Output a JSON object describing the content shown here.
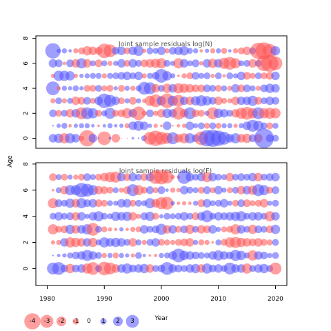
{
  "colors": {
    "negative": "#ff5050",
    "positive": "#5050ff",
    "frame": "#000000",
    "title": "#555555"
  },
  "chart_data": [
    {
      "type": "scatter",
      "subtype": "bubble",
      "title": "Joint sample residuals log(N)",
      "ylabel": "Age",
      "xlim": [
        1978,
        2022
      ],
      "ylim": [
        -0.8,
        8.2
      ],
      "xticks": [
        "1980",
        "1990",
        "2000",
        "2010",
        "2020"
      ],
      "yticks": [
        "0",
        "2",
        "4",
        "6",
        "8"
      ],
      "years": [
        1981,
        1982,
        1983,
        1984,
        1985,
        1986,
        1987,
        1988,
        1989,
        1990,
        1991,
        1992,
        1993,
        1994,
        1995,
        1996,
        1997,
        1998,
        1999,
        2000,
        2001,
        2002,
        2003,
        2004,
        2005,
        2006,
        2007,
        2008,
        2009,
        2010,
        2011,
        2012,
        2013,
        2014,
        2015,
        2016,
        2017,
        2018,
        2019,
        2020
      ],
      "ages": [
        0,
        1,
        2,
        3,
        4,
        5,
        6,
        7
      ],
      "residuals": [
        [
          1.0,
          1.1,
          -1.2,
          1.2,
          1.0,
          -0.6,
          -1.9,
          1.0,
          0.2,
          -1.6,
          0.3,
          -1.0,
          -0.1,
          -0.1,
          0.3,
          0.2,
          0.7,
          -1.5,
          -1.8,
          -1.5,
          -1.3,
          1.4,
          -1.0,
          -1.2,
          1.2,
          0.9,
          -1.6,
          1.9,
          2.0,
          1.8,
          1.5,
          1.0,
          1.2,
          -1.0,
          -1.1,
          0.9,
          -1.0,
          2.3,
          0.9,
          0.8
        ],
        [
          0.2,
          0.5,
          0.7,
          -0.4,
          0.5,
          0.6,
          0.6,
          0.4,
          -0.3,
          0.4,
          0.6,
          0.4,
          0.5,
          -0.6,
          1.0,
          1.2,
          1.0,
          0.5,
          -0.5,
          -0.3,
          1.0,
          -0.2,
          -0.4,
          -0.5,
          1.0,
          0.6,
          0.8,
          -0.7,
          0.8,
          -0.7,
          0.6,
          0.6,
          -0.5,
          0.6,
          1.0,
          1.4,
          1.2,
          0.8,
          -0.8,
          0.7
        ],
        [
          0.9,
          -0.8,
          0.8,
          -1.0,
          1.0,
          -1.4,
          1.4,
          1.2,
          -0.8,
          0.7,
          1.3,
          -0.8,
          -0.9,
          -1.2,
          1.0,
          -1.6,
          -0.6,
          0.9,
          -0.6,
          -1.0,
          1.1,
          1.0,
          -1.5,
          -1.0,
          1.4,
          -0.9,
          -0.8,
          0.6,
          -1.4,
          1.1,
          1.0,
          0.8,
          -1.0,
          -1.3,
          -1.5,
          -1.2,
          1.4,
          -1.2,
          -1.3,
          -1.2
        ],
        [
          -0.6,
          0.8,
          -0.6,
          0.7,
          -1.0,
          -0.9,
          0.9,
          -0.7,
          1.0,
          1.7,
          1.4,
          1.0,
          -0.8,
          0.6,
          -0.9,
          0.6,
          -0.5,
          -1.2,
          -1.5,
          1.1,
          -1.7,
          1.2,
          -1.4,
          1.0,
          -1.0,
          1.1,
          1.3,
          1.1,
          0.9,
          -1.0,
          -0.7,
          -0.6,
          -1.0,
          1.0,
          1.0,
          1.2,
          -0.9,
          0.8,
          1.0,
          0.9
        ],
        [
          1.6,
          -0.5,
          0.6,
          0.5,
          0.7,
          0.5,
          -0.8,
          -0.8,
          0.8,
          -0.7,
          -0.8,
          0.5,
          -0.8,
          0.6,
          -0.6,
          0.7,
          1.5,
          1.4,
          -1.0,
          0.8,
          -1.1,
          1.0,
          -1.2,
          -1.1,
          -1.0,
          -0.9,
          -0.9,
          0.9,
          0.8,
          -0.8,
          0.7,
          -0.6,
          1.0,
          -0.9,
          0.9,
          0.7,
          -0.6,
          0.9,
          1.1,
          1.0
        ],
        [
          -0.5,
          1.2,
          1.2,
          1.1,
          -0.5,
          0.5,
          0.6,
          0.7,
          0.7,
          -0.6,
          0.7,
          0.8,
          0.9,
          1.0,
          0.8,
          1.0,
          -0.6,
          0.7,
          0.9,
          1.6,
          1.1,
          0.6,
          -0.3,
          -0.6,
          -0.8,
          0.9,
          0.7,
          0.8,
          -0.5,
          0.8,
          -0.4,
          0.8,
          0.6,
          1.0,
          -0.9,
          -0.7,
          0.8,
          -0.8,
          -0.9,
          1.0
        ],
        [
          1.0,
          0.9,
          -0.4,
          0.9,
          -1.0,
          1.2,
          -1.0,
          0.7,
          -0.9,
          0.7,
          -0.6,
          0.6,
          1.0,
          -0.8,
          1.0,
          0.8,
          -0.9,
          -1.0,
          -1.1,
          -1.2,
          0.8,
          0.6,
          -1.2,
          1.0,
          0.7,
          0.9,
          -0.5,
          1.0,
          -1.1,
          1.0,
          -1.3,
          -1.5,
          -1.2,
          0.7,
          0.8,
          -1.0,
          0.8,
          -1.8,
          -2.0,
          -1.6
        ],
        [
          1.8,
          0.5,
          0.6,
          0.4,
          -0.6,
          -0.8,
          -1.1,
          -1.0,
          -0.9,
          -1.7,
          -1.5,
          0.9,
          1.0,
          -0.8,
          1.0,
          1.2,
          -0.5,
          0.8,
          0.7,
          1.0,
          -0.6,
          0.9,
          1.0,
          1.1,
          0.7,
          0.6,
          -0.4,
          0.5,
          -0.6,
          0.6,
          -0.7,
          0.4,
          -0.6,
          -0.8,
          -1.0,
          0.8,
          -1.9,
          -2.0,
          -1.6,
          1.1
        ]
      ]
    },
    {
      "type": "scatter",
      "subtype": "bubble",
      "title": "Joint sample residuals log(F)",
      "xlabel": "Year",
      "ylabel": "Age",
      "xlim": [
        1978,
        2022
      ],
      "ylim": [
        -1.3,
        8.1
      ],
      "xticks": [
        "1980",
        "1990",
        "2000",
        "2010",
        "2020"
      ],
      "yticks": [
        "0",
        "2",
        "4",
        "6",
        "8"
      ],
      "years": [
        1981,
        1982,
        1983,
        1984,
        1985,
        1986,
        1987,
        1988,
        1989,
        1990,
        1991,
        1992,
        1993,
        1994,
        1995,
        1996,
        1997,
        1998,
        1999,
        2000,
        2001,
        2002,
        2003,
        2004,
        2005,
        2006,
        2007,
        2008,
        2009,
        2010,
        2011,
        2012,
        2013,
        2014,
        2015,
        2016,
        2017,
        2018,
        2019,
        2020
      ],
      "ages": [
        0,
        1,
        2,
        3,
        4,
        5,
        6,
        7
      ],
      "residuals": [
        [
          1.4,
          1.5,
          0.9,
          -1.1,
          0.9,
          1.0,
          -1.2,
          -1.5,
          0.8,
          -1.6,
          -1.4,
          -1.0,
          1.0,
          1.2,
          0.9,
          1.0,
          1.1,
          -1.0,
          0.8,
          0.9,
          1.5,
          1.0,
          0.9,
          0.8,
          1.0,
          1.1,
          -1.0,
          1.2,
          0.9,
          1.0,
          0.8,
          1.4,
          1.0,
          1.0,
          -1.2,
          0.8,
          1.0,
          1.1,
          0.8,
          -1.4
        ],
        [
          0.2,
          0.4,
          0.5,
          0.7,
          0.9,
          1.0,
          1.3,
          1.0,
          0.8,
          -0.6,
          0.6,
          -0.7,
          0.6,
          0.5,
          -0.5,
          0.8,
          0.4,
          -0.3,
          -0.4,
          0.6,
          0.7,
          1.0,
          1.6,
          1.1,
          1.0,
          0.9,
          0.8,
          0.7,
          1.0,
          1.2,
          1.0,
          0.9,
          1.3,
          1.1,
          0.7,
          -1.2,
          1.0,
          0.9,
          0.6,
          0.8
        ],
        [
          -0.5,
          -0.6,
          1.0,
          -1.2,
          -1.1,
          -1.0,
          1.0,
          -1.1,
          0.7,
          1.2,
          1.0,
          1.1,
          1.0,
          0.8,
          -1.0,
          0.7,
          -0.6,
          0.8,
          1.0,
          -0.8,
          -0.7,
          -0.6,
          -0.8,
          -0.9,
          -1.0,
          0.6,
          -0.7,
          -0.6,
          -0.3,
          0.7,
          -0.8,
          -1.2,
          -1.3,
          -1.1,
          -1.0,
          -0.9,
          -1.0,
          -0.8,
          -0.7,
          0.8
        ],
        [
          -1.2,
          -0.8,
          -0.9,
          1.1,
          -1.0,
          1.0,
          1.2,
          -1.5,
          0.8,
          -0.7,
          -0.5,
          -0.4,
          0.5,
          -0.4,
          -0.6,
          -0.7,
          1.0,
          0.8,
          0.9,
          1.3,
          -1.0,
          1.0,
          -0.8,
          0.9,
          -1.1,
          0.8,
          -1.0,
          -0.9,
          1.0,
          0.6,
          -0.7,
          -0.8,
          -1.2,
          1.0,
          0.8,
          -1.1,
          0.9,
          0.8,
          -0.9,
          1.1
        ],
        [
          0.8,
          1.0,
          0.8,
          0.9,
          -1.0,
          1.0,
          0.6,
          1.0,
          1.2,
          0.8,
          0.7,
          1.1,
          1.0,
          1.1,
          -1.0,
          -0.6,
          0.9,
          1.1,
          -0.8,
          0.5,
          0.8,
          0.7,
          0.8,
          1.0,
          0.8,
          -0.9,
          1.0,
          1.4,
          0.8,
          1.0,
          0.9,
          1.0,
          1.1,
          1.2,
          0.8,
          1.0,
          1.0,
          0.8,
          -1.2,
          1.0
        ],
        [
          -1.2,
          0.9,
          0.8,
          1.1,
          -1.0,
          1.2,
          0.9,
          1.0,
          -0.9,
          -0.8,
          0.7,
          0.6,
          1.0,
          1.0,
          -0.8,
          0.8,
          0.7,
          1.2,
          -1.0,
          -1.4,
          -1.5,
          0.5,
          -0.4,
          -0.5,
          -0.4,
          0.6,
          -0.9,
          1.0,
          0.7,
          0.8,
          1.0,
          0.6,
          -0.8,
          0.9,
          -0.9,
          -0.7,
          -0.8,
          -1.0,
          0.6,
          0.8
        ],
        [
          -0.3,
          0.7,
          -1.0,
          1.2,
          1.2,
          1.7,
          1.5,
          1.2,
          -1.0,
          -0.9,
          -0.8,
          0.7,
          -0.6,
          -0.9,
          1.4,
          -1.2,
          -0.8,
          0.9,
          -0.7,
          0.9,
          0.4,
          -0.6,
          -0.5,
          1.0,
          0.8,
          0.7,
          -0.8,
          0.9,
          -0.7,
          1.0,
          0.6,
          -0.7,
          0.8,
          -1.0,
          1.0,
          -1.1,
          1.4,
          1.2,
          -0.8,
          0.9
        ],
        [
          -0.9,
          0.7,
          -0.8,
          0.6,
          -0.6,
          -0.8,
          0.9,
          0.7,
          -0.8,
          -1.0,
          -1.2,
          -1.3,
          1.0,
          -0.9,
          1.0,
          0.8,
          -0.9,
          1.0,
          -1.6,
          -1.7,
          -1.5,
          -0.5,
          -0.4,
          1.6,
          1.0,
          0.8,
          1.0,
          -1.2,
          1.0,
          0.8,
          0.7,
          -1.0,
          0.8,
          0.9,
          0.8,
          1.0,
          -1.0,
          0.8,
          0.9,
          1.0
        ]
      ]
    }
  ],
  "legend": {
    "label": "Year",
    "items": [
      {
        "label": "-4",
        "value": -4
      },
      {
        "label": "-3",
        "value": -3
      },
      {
        "label": "-2",
        "value": -2
      },
      {
        "label": "-1",
        "value": -1
      },
      {
        "label": "0",
        "value": 0
      },
      {
        "label": "1",
        "value": 1
      },
      {
        "label": "2",
        "value": 2
      },
      {
        "label": "3",
        "value": 3
      }
    ]
  }
}
